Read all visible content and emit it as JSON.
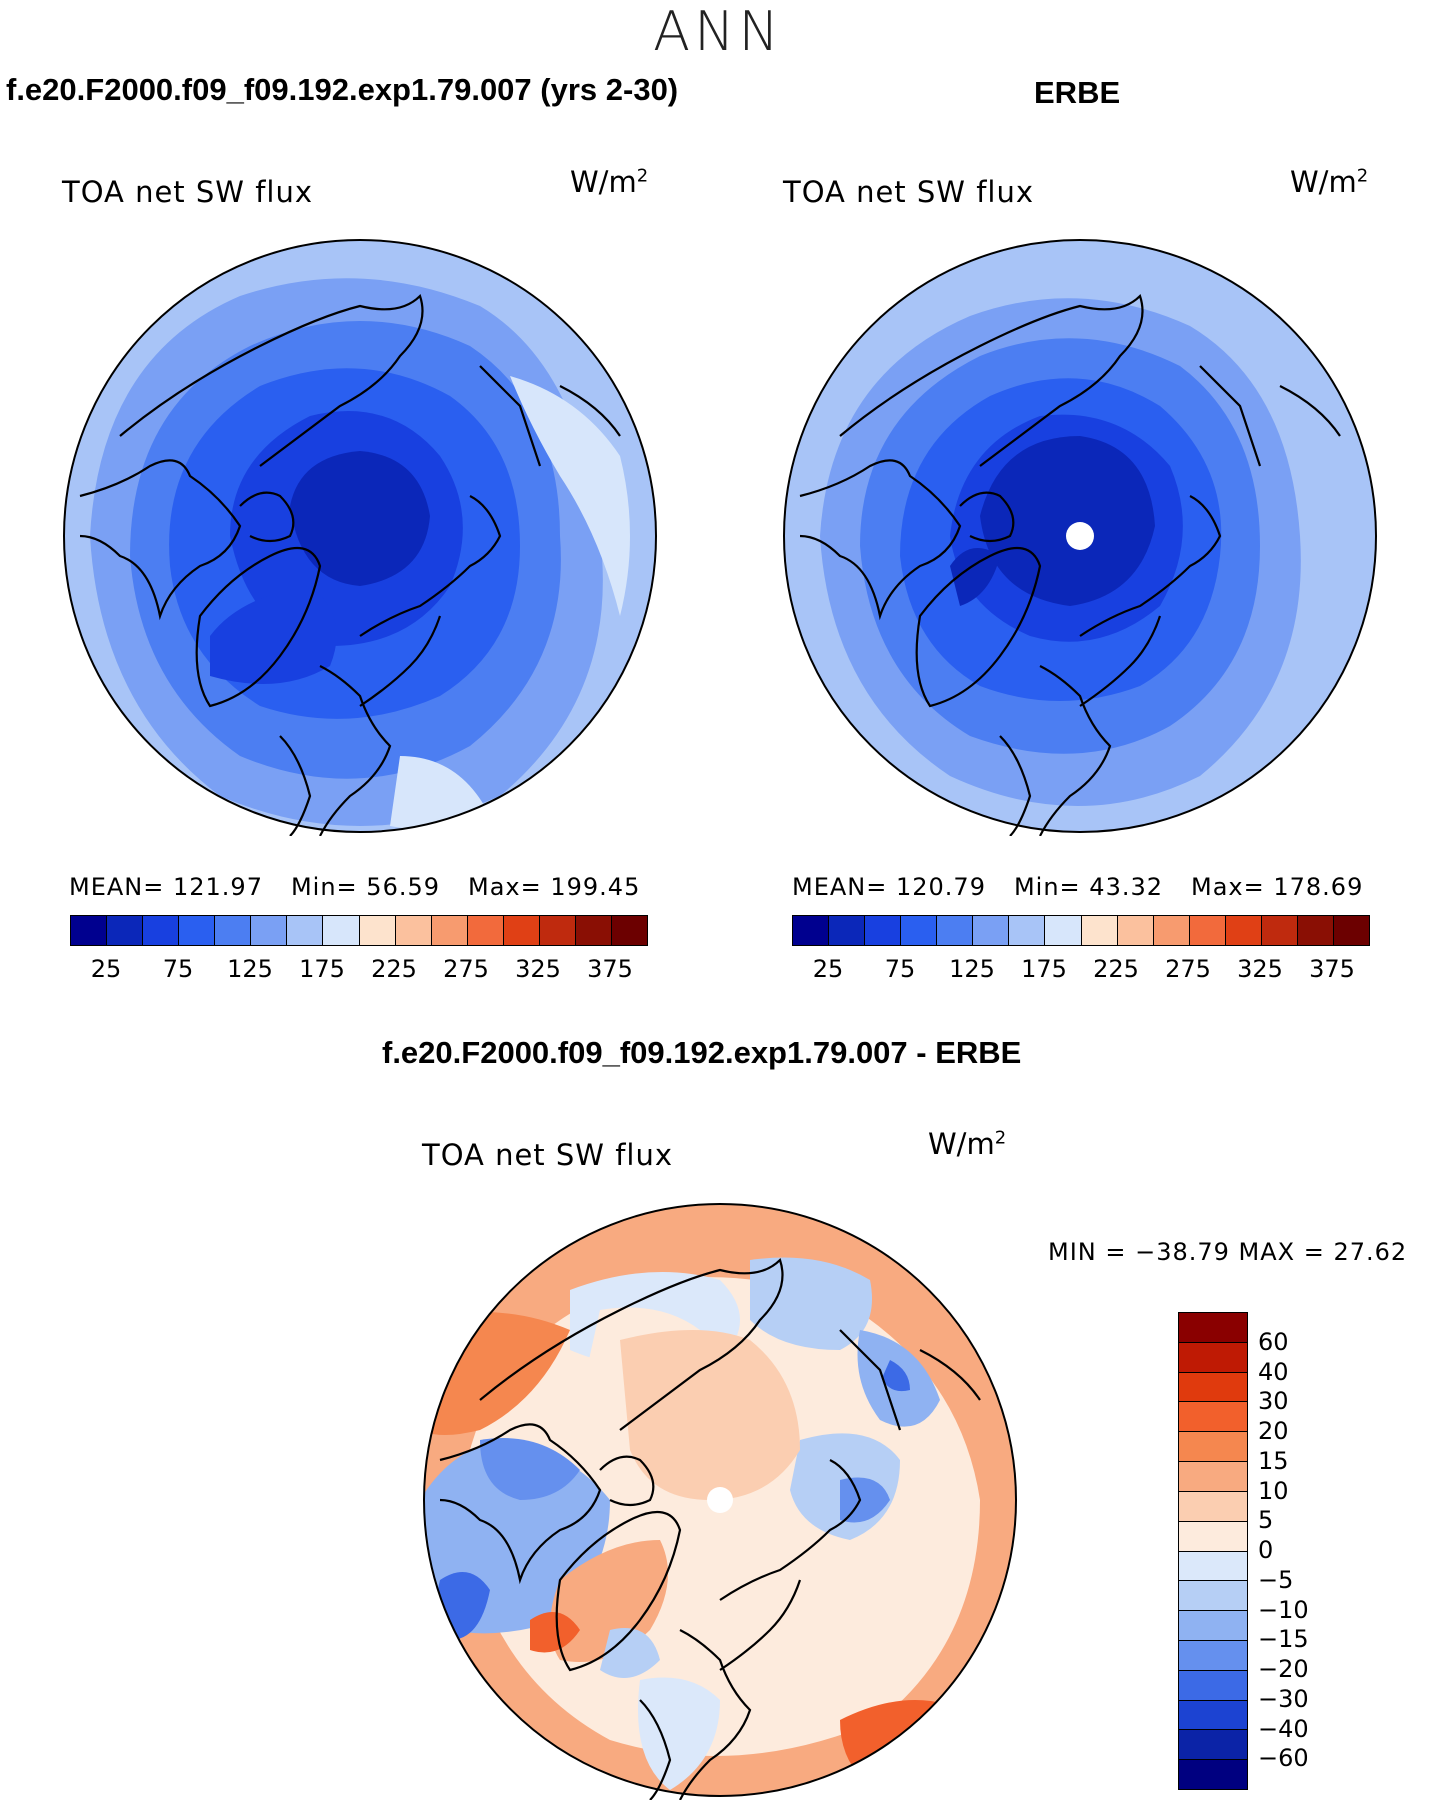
{
  "title": "ANN",
  "panels": [
    {
      "title": "f.e20.F2000.f09_f09.192.exp1.79.007 (yrs 2-30)",
      "variable": "TOA net SW flux",
      "units": "W/m",
      "units_sup": "2",
      "stats": {
        "mean": "MEAN= 121.97",
        "min": "Min=   56.59",
        "max": "Max= 199.45"
      },
      "field_levels": [
        70,
        95,
        110,
        130,
        150,
        170,
        190
      ]
    },
    {
      "title": "ERBE",
      "variable": "TOA net SW flux",
      "units": "W/m",
      "units_sup": "2",
      "stats": {
        "mean": "MEAN= 120.79",
        "min": "Min=   43.32",
        "max": "Max= 178.69"
      },
      "field_levels": [
        60,
        85,
        105,
        125,
        145,
        165,
        175
      ]
    }
  ],
  "colorbar": {
    "ticks": [
      "25",
      "75",
      "125",
      "175",
      "225",
      "275",
      "325",
      "375"
    ],
    "colors": [
      "#00008f",
      "#0b27b9",
      "#1840e0",
      "#2a5ff0",
      "#4c7ef2",
      "#7aa0f4",
      "#a8c4f7",
      "#d7e6fb",
      "#fde3cd",
      "#fbc19e",
      "#f79b6f",
      "#f26a3c",
      "#e04015",
      "#bf2a0e",
      "#8a0f04",
      "#6c0000"
    ]
  },
  "diff_panel": {
    "title": "f.e20.F2000.f09_f09.192.exp1.79.007 - ERBE",
    "variable": "TOA net SW flux",
    "units": "W/m",
    "units_sup": "2",
    "minmax": "MIN = −38.79 MAX =   27.62",
    "colorbar_labels": [
      "60",
      "40",
      "30",
      "20",
      "15",
      "10",
      "5",
      "0",
      "−5",
      "−10",
      "−15",
      "−20",
      "−30",
      "−40",
      "−60"
    ],
    "colorbar_colors": [
      "#8a0000",
      "#bf1a04",
      "#e03a0d",
      "#f2602c",
      "#f5874f",
      "#f8aa80",
      "#fbceb1",
      "#fdebdd",
      "#dbe8fa",
      "#b6cff5",
      "#8fb2f2",
      "#6590ee",
      "#3c6ae6",
      "#1c43d2",
      "#0b23a7",
      "#000080"
    ]
  }
}
